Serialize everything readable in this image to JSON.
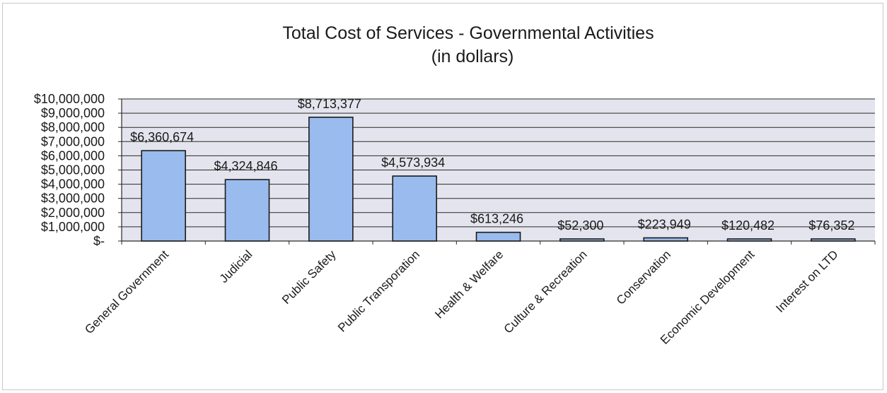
{
  "chart_data": {
    "type": "bar",
    "title": "Total Cost of Services - Governmental Activities",
    "subtitle": "(in dollars)",
    "xlabel": "",
    "ylabel": "",
    "categories": [
      "General Government",
      "Judicial",
      "Public Safety",
      "Public Transporation",
      "Health & Welfare",
      "Culture & Recreation",
      "Conservation",
      "Economic Development",
      "Interest on LTD"
    ],
    "values": [
      6360674,
      4324846,
      8713377,
      4573934,
      613246,
      52300,
      223949,
      120482,
      76352
    ],
    "data_labels": [
      "$6,360,674",
      "$4,324,846",
      "$8,713,377",
      "$4,573,934",
      "$613,246",
      "$52,300",
      "$223,949",
      "$120,482",
      "$76,352"
    ],
    "ylim": [
      0,
      10000000
    ],
    "yticks": [
      0,
      1000000,
      2000000,
      3000000,
      4000000,
      5000000,
      6000000,
      7000000,
      8000000,
      9000000,
      10000000
    ],
    "ytick_labels": [
      "$-",
      "$1,000,000",
      "$2,000,000",
      "$3,000,000",
      "$4,000,000",
      "$5,000,000",
      "$6,000,000",
      "$7,000,000",
      "$8,000,000",
      "$9,000,000",
      "$10,000,000"
    ],
    "grid": true,
    "legend": "none",
    "colors": {
      "bar_fill": "#99bbee",
      "bar_stroke": "#1a1a1a",
      "plot_background": "#e4e4ee",
      "gridline": "#2a2a2a",
      "text": "#1a1a1a"
    }
  }
}
